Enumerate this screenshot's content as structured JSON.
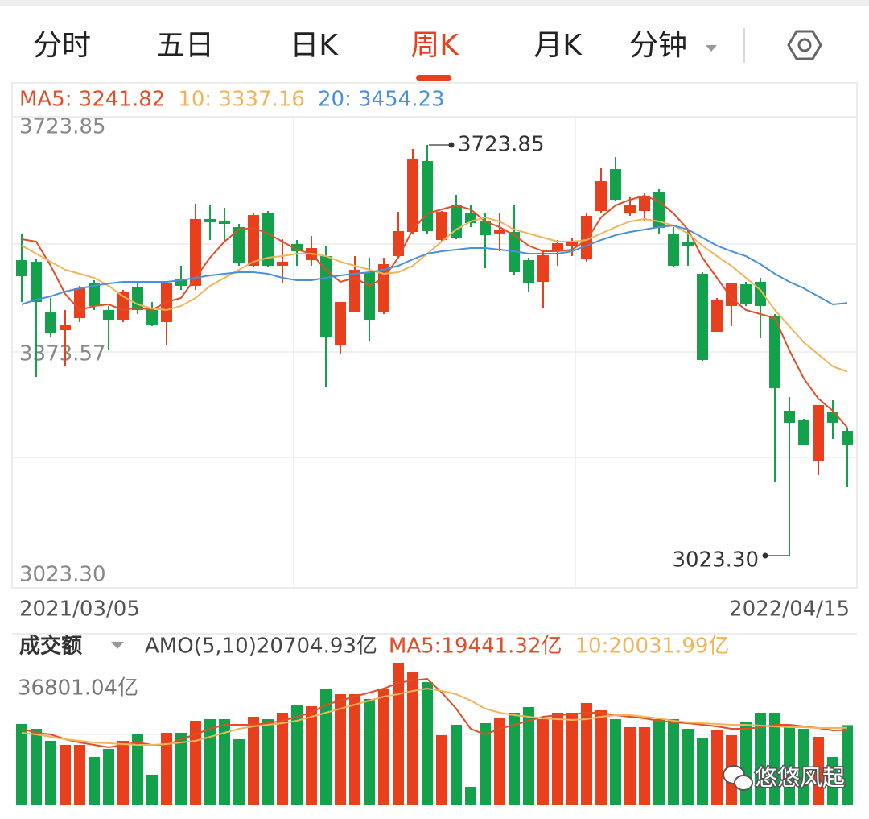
{
  "tabs": [
    "分时",
    "五日",
    "日K",
    "周K",
    "月K",
    "分钟"
  ],
  "active_tab": 3,
  "watermark": "悠悠风起",
  "chart_data": [
    {
      "type": "candlestick",
      "up_color": "#e8401c",
      "down_color": "#13a14b",
      "ylim": [
        3023.3,
        3723.85
      ],
      "yticks": [
        3723.85,
        3373.57,
        {
          "value": 3023.3,
          "label": "3023.30"
        }
      ],
      "date_range": [
        "2021/03/05",
        "2022/04/15"
      ],
      "max_label": {
        "value": 3723.85,
        "label": "3723.85"
      },
      "min_label": {
        "value": 3023.3,
        "label": "3023.30"
      },
      "ohlc": [
        [
          3527.4,
          3572.8,
          3456.0,
          3500.0
        ],
        [
          3524.7,
          3528.8,
          3328.3,
          3456.0
        ],
        [
          3438.1,
          3462.9,
          3396.9,
          3403.8
        ],
        [
          3407.9,
          3442.3,
          3346.1,
          3417.5
        ],
        [
          3428.5,
          3483.5,
          3421.7,
          3479.3
        ],
        [
          3487.6,
          3493.1,
          3442.3,
          3449.1
        ],
        [
          3442.3,
          3449.1,
          3373.6,
          3425.8
        ],
        [
          3425.8,
          3476.6,
          3421.7,
          3472.5
        ],
        [
          3480.7,
          3490.3,
          3435.4,
          3442.3
        ],
        [
          3442.3,
          3456.0,
          3414.8,
          3417.5
        ],
        [
          3421.7,
          3490.3,
          3383.2,
          3487.6
        ],
        [
          3494.5,
          3517.8,
          3476.6,
          3483.5
        ],
        [
          3483.5,
          3623.6,
          3476.6,
          3597.5
        ],
        [
          3597.5,
          3620.8,
          3561.8,
          3592.0
        ],
        [
          3594.7,
          3616.7,
          3559.0,
          3589.2
        ],
        [
          3583.7,
          3589.2,
          3517.8,
          3521.9
        ],
        [
          3517.8,
          3607.1,
          3515.1,
          3604.3
        ],
        [
          3608.5,
          3611.2,
          3515.1,
          3517.8
        ],
        [
          3517.8,
          3563.1,
          3487.6,
          3524.7
        ],
        [
          3554.9,
          3561.8,
          3517.8,
          3542.5
        ],
        [
          3527.4,
          3568.6,
          3517.8,
          3548.0
        ],
        [
          3534.3,
          3552.1,
          3311.8,
          3396.9
        ],
        [
          3383.2,
          3456.0,
          3366.7,
          3456.0
        ],
        [
          3439.5,
          3534.3,
          3438.1,
          3510.9
        ],
        [
          3506.8,
          3531.5,
          3390.1,
          3425.8
        ],
        [
          3438.1,
          3531.5,
          3435.4,
          3520.6
        ],
        [
          3534.3,
          3609.8,
          3531.5,
          3576.9
        ],
        [
          3575.5,
          3717.0,
          3572.8,
          3699.1
        ],
        [
          3696.4,
          3723.85,
          3572.8,
          3576.9
        ],
        [
          3561.8,
          3611.2,
          3559.0,
          3609.8
        ],
        [
          3620.8,
          3638.7,
          3563.1,
          3565.9
        ],
        [
          3607.1,
          3620.8,
          3583.7,
          3590.6
        ],
        [
          3593.4,
          3607.1,
          3513.7,
          3570.0
        ],
        [
          3572.8,
          3607.1,
          3542.5,
          3579.6
        ],
        [
          3575.5,
          3620.8,
          3501.3,
          3506.8
        ],
        [
          3527.4,
          3531.5,
          3473.9,
          3487.6
        ],
        [
          3490.3,
          3545.3,
          3446.4,
          3535.7
        ],
        [
          3545.3,
          3561.8,
          3517.8,
          3556.3
        ],
        [
          3550.8,
          3564.5,
          3534.3,
          3559.0
        ],
        [
          3528.8,
          3607.1,
          3524.7,
          3603.0
        ],
        [
          3611.2,
          3685.4,
          3607.1,
          3662.0
        ],
        [
          3682.6,
          3703.2,
          3627.7,
          3630.4
        ],
        [
          3607.1,
          3634.6,
          3603.0,
          3620.8
        ],
        [
          3611.2,
          3641.4,
          3593.4,
          3637.3
        ],
        [
          3644.2,
          3648.3,
          3572.8,
          3582.4
        ],
        [
          3572.8,
          3583.7,
          3515.1,
          3517.8
        ],
        [
          3559.0,
          3579.6,
          3517.8,
          3552.1
        ],
        [
          3504.1,
          3506.8,
          3355.7,
          3357.1
        ],
        [
          3405.2,
          3462.9,
          3405.2,
          3460.1
        ],
        [
          3449.1,
          3487.6,
          3414.8,
          3487.6
        ],
        [
          3486.2,
          3490.3,
          3449.1,
          3451.9
        ],
        [
          3490.3,
          3497.2,
          3394.2,
          3449.1
        ],
        [
          3432.6,
          3435.4,
          3149.7,
          3309.0
        ],
        [
          3270.6,
          3293.9,
          3023.3,
          3250.0
        ],
        [
          3254.1,
          3256.8,
          3212.9,
          3212.9
        ],
        [
          3185.4,
          3280.2,
          3160.7,
          3280.2
        ],
        [
          3269.2,
          3288.4,
          3222.5,
          3250.0
        ],
        [
          3236.2,
          3240.3,
          3140.1,
          3212.9
        ]
      ],
      "series": [
        {
          "name": "MA5",
          "label": "MA5: 3241.82",
          "color": "#e04e2a",
          "values": [
            3563.1,
            3559.0,
            3517.8,
            3469.7,
            3442.3,
            3449.1,
            3451.9,
            3442.3,
            3446.4,
            3442.3,
            3456.0,
            3462.9,
            3497.2,
            3531.5,
            3559.0,
            3579.6,
            3582.4,
            3572.8,
            3559.0,
            3545.3,
            3538.4,
            3510.9,
            3490.3,
            3497.2,
            3483.5,
            3497.2,
            3531.5,
            3579.6,
            3607.1,
            3614.0,
            3620.8,
            3614.0,
            3593.4,
            3583.7,
            3570.0,
            3552.1,
            3542.5,
            3542.5,
            3545.3,
            3561.8,
            3600.2,
            3620.8,
            3630.4,
            3637.3,
            3627.7,
            3607.1,
            3579.6,
            3531.5,
            3497.2,
            3462.9,
            3442.3,
            3435.4,
            3428.5,
            3373.6,
            3325.5,
            3291.2,
            3270.6,
            3241.82
          ]
        },
        {
          "name": "10",
          "label": "10: 3337.16",
          "color": "#f0b45a",
          "values": [
            3552.1,
            3538.4,
            3524.7,
            3510.9,
            3504.1,
            3497.2,
            3483.5,
            3465.6,
            3451.9,
            3445.0,
            3442.3,
            3449.1,
            3462.9,
            3483.5,
            3497.2,
            3510.9,
            3524.7,
            3531.5,
            3534.3,
            3538.4,
            3538.4,
            3534.3,
            3524.7,
            3517.8,
            3510.9,
            3504.1,
            3506.8,
            3517.8,
            3538.4,
            3559.0,
            3579.6,
            3593.4,
            3600.2,
            3593.4,
            3579.6,
            3572.8,
            3565.9,
            3559.0,
            3559.0,
            3561.8,
            3572.8,
            3583.7,
            3593.4,
            3597.5,
            3593.4,
            3586.5,
            3572.8,
            3552.1,
            3534.3,
            3517.8,
            3497.2,
            3476.6,
            3442.3,
            3414.8,
            3387.3,
            3366.7,
            3346.1,
            3337.16
          ]
        },
        {
          "name": "20",
          "label": "20: 3454.23",
          "color": "#4a90d9",
          "values": [
            3451.9,
            3460.1,
            3465.6,
            3473.9,
            3479.3,
            3483.5,
            3487.6,
            3490.3,
            3490.3,
            3490.3,
            3490.3,
            3493.1,
            3497.2,
            3501.3,
            3504.1,
            3506.8,
            3506.8,
            3504.1,
            3497.2,
            3493.1,
            3493.1,
            3497.2,
            3501.3,
            3504.1,
            3506.8,
            3510.9,
            3517.8,
            3528.8,
            3538.4,
            3542.5,
            3545.3,
            3548.0,
            3548.0,
            3545.3,
            3542.5,
            3538.4,
            3538.4,
            3538.4,
            3542.5,
            3552.1,
            3561.8,
            3570.0,
            3575.5,
            3579.6,
            3583.7,
            3586.5,
            3579.6,
            3565.9,
            3552.1,
            3542.5,
            3534.3,
            3520.6,
            3504.1,
            3490.3,
            3479.3,
            3465.6,
            3451.9,
            3454.23
          ]
        }
      ]
    },
    {
      "type": "bar",
      "title": "成交额",
      "amo_label": "AMO(5,10)20704.93亿",
      "ylim": [
        0,
        36801.04
      ],
      "yticks": [
        {
          "value": 36801.04,
          "label": "36801.04亿"
        }
      ],
      "values": [
        20998,
        19751,
        16632,
        15593,
        15593,
        12474,
        14553,
        16632,
        18295,
        7900,
        18711,
        18711,
        21830,
        22245,
        22245,
        17048,
        22869,
        22245,
        23909,
        25988,
        25572,
        30146,
        28690,
        28690,
        27443,
        30146,
        36801.04,
        34304,
        31809,
        18087,
        20790,
        4782,
        21206,
        22453,
        23909,
        25364,
        22245,
        23909,
        23909,
        26403,
        24532,
        22245,
        20166,
        20166,
        22245,
        22245,
        19751,
        17256,
        19335,
        18087,
        21414,
        23909,
        23909,
        20790,
        19751,
        17672,
        12474,
        20704.93
      ],
      "series": [
        {
          "name": "MA5",
          "label": "MA5:19441.32亿",
          "color": "#e04e2a",
          "values": [
            19751,
            18711,
            18295,
            17048,
            16216,
            15593,
            14969,
            15593,
            16216,
            15593,
            15593,
            17048,
            18295,
            19751,
            20790,
            20790,
            20790,
            21206,
            21830,
            22869,
            23909,
            25988,
            27027,
            28067,
            29106,
            30146,
            31601,
            32225,
            32640,
            29106,
            24948,
            19751,
            18295,
            19751,
            20790,
            21830,
            22869,
            23285,
            23493,
            23909,
            23909,
            23285,
            22869,
            22453,
            21830,
            21414,
            21206,
            20790,
            20374,
            19751,
            19751,
            20166,
            20790,
            20790,
            20374,
            19958,
            19335,
            19441.32
          ]
        },
        {
          "name": "10",
          "label": "10:20031.99亿",
          "color": "#f0b45a",
          "values": [
            18711,
            18295,
            17672,
            17048,
            16632,
            16216,
            16008,
            15800,
            15593,
            15593,
            15800,
            16216,
            16632,
            17672,
            18711,
            19751,
            20374,
            20790,
            21206,
            21830,
            22869,
            23909,
            24948,
            25988,
            27027,
            28067,
            28690,
            29522,
            30146,
            29522,
            28690,
            27027,
            24948,
            23909,
            23285,
            22869,
            22453,
            22245,
            22037,
            22245,
            22869,
            23285,
            23285,
            22869,
            22453,
            21830,
            21414,
            21206,
            20998,
            20790,
            20790,
            20582,
            20374,
            20166,
            20166,
            19958,
            19958,
            20031.99
          ]
        }
      ]
    }
  ]
}
